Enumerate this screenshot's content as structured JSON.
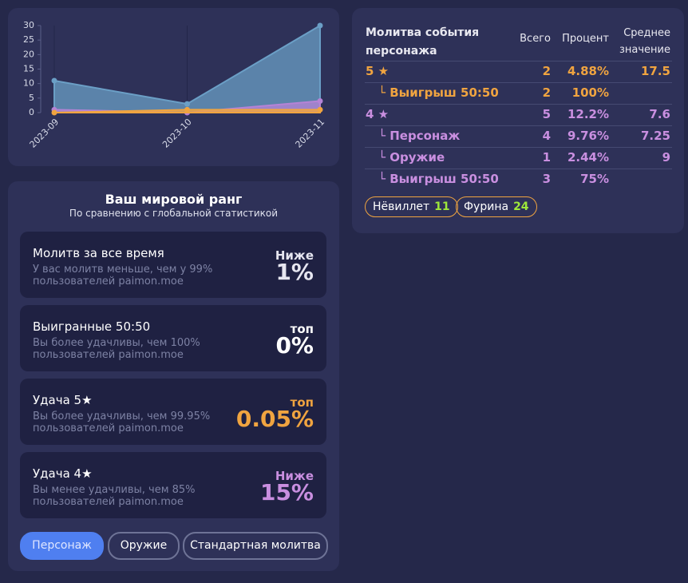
{
  "chart_data": {
    "type": "area",
    "categories": [
      "2023-09",
      "2023-10",
      "2023-11"
    ],
    "series": [
      {
        "color": "#6b9fc6",
        "values": [
          11,
          3,
          30
        ]
      },
      {
        "color": "#b583d6",
        "values": [
          1,
          0,
          4
        ]
      },
      {
        "color": "#f0a440",
        "values": [
          0,
          1,
          1
        ]
      }
    ],
    "ylim": [
      0,
      30
    ],
    "yticks": [
      0,
      5,
      10,
      15,
      20,
      25,
      30
    ],
    "grid": true
  },
  "table": {
    "header": [
      "Молитва события персонажа",
      "Всего",
      "Процент",
      "Среднее значение"
    ],
    "rows": [
      [
        "5 ★",
        2,
        "4.88%",
        17.5
      ],
      [
        "└ Выигрыш 50:50",
        2,
        "100%",
        null
      ],
      [
        "4 ★",
        5,
        "12.2%",
        7.6
      ],
      [
        "└ Персонаж",
        4,
        "9.76%",
        7.25
      ],
      [
        "└ Оружие",
        1,
        "2.44%",
        9
      ],
      [
        "└ Выигрыш 50:50",
        3,
        "75%",
        null
      ]
    ],
    "tags": [
      {
        "name": "Нёвиллет",
        "count": 11
      },
      {
        "name": "Фурина",
        "count": 24
      }
    ]
  },
  "rank": {
    "title": "Ваш мировой ранг",
    "subtitle": "По сравнению с глобальной статистикой",
    "cards": [
      {
        "title": "Молитв за все время",
        "text": "У вас молитв меньше, чем у 99% пользователей paimon.moe",
        "badge": "Ниже",
        "value": "1%"
      },
      {
        "title": "Выигранные 50:50",
        "text": "Вы более удачливы, чем 100% пользователей paimon.moe",
        "badge": "топ",
        "value": "0%"
      },
      {
        "title": "Удача 5★",
        "text": "Вы более удачливы, чем 99.95% пользователей paimon.moe",
        "badge": "топ",
        "value": "0.05%"
      },
      {
        "title": "Удача 4★",
        "text": "Вы менее удачливы, чем 85% пользователей paimon.moe",
        "badge": "Ниже",
        "value": "15%"
      }
    ],
    "buttons": [
      "Персонаж",
      "Оружие",
      "Стандартная молитва"
    ]
  }
}
